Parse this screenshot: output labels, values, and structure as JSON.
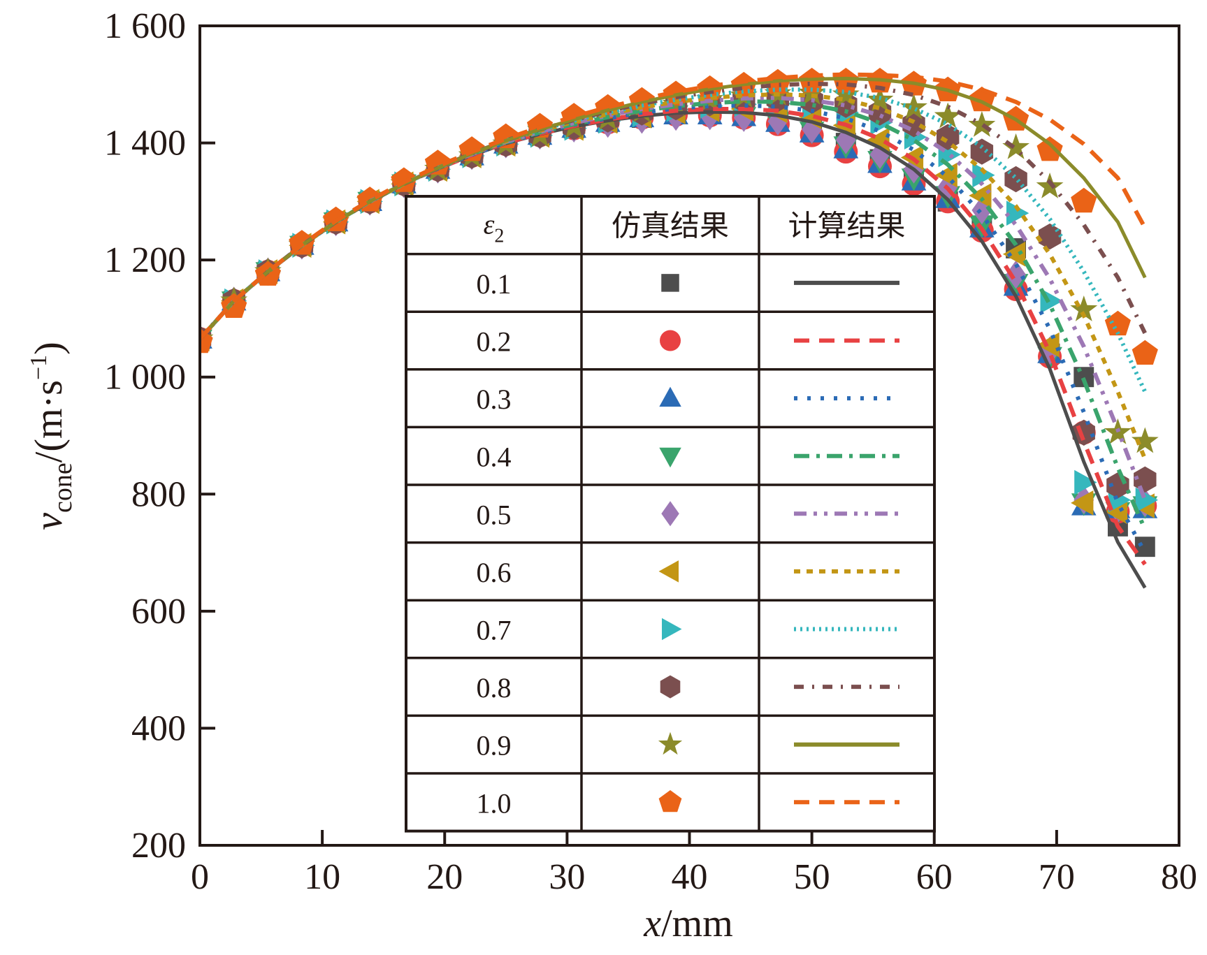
{
  "chart_data": {
    "type": "line",
    "title": "",
    "xlabel": "x/mm",
    "xlabel_italic_part": "x",
    "xlabel_unit": "/mm",
    "ylabel_var": "v",
    "ylabel_sub": "cone",
    "ylabel_unit": "/(m·s",
    "ylabel_sup": "−1",
    "ylabel_close": ")",
    "xlim": [
      0,
      80
    ],
    "ylim": [
      200,
      1600
    ],
    "xticks": [
      0,
      10,
      20,
      30,
      40,
      50,
      60,
      70,
      80
    ],
    "xtick_labels": [
      "0",
      "10",
      "20",
      "30",
      "40",
      "50",
      "60",
      "70",
      "80"
    ],
    "yticks": [
      200,
      400,
      600,
      800,
      1000,
      1200,
      1400,
      1600
    ],
    "ytick_labels": [
      "200",
      "400",
      "600",
      "800",
      "1 000",
      "1 200",
      "1 400",
      "1 600"
    ],
    "grid": false,
    "legend": {
      "placement": "center-inside",
      "header": [
        "ε₂",
        "仿真结果",
        "计算结果"
      ],
      "header_symbol": "ε",
      "header_sub": "2"
    },
    "x": [
      0,
      2.78,
      5.56,
      8.33,
      11.11,
      13.89,
      16.67,
      19.44,
      22.22,
      25.0,
      27.78,
      30.56,
      33.33,
      36.11,
      38.89,
      41.67,
      44.44,
      47.22,
      50.0,
      52.78,
      55.56,
      58.33,
      61.11,
      63.89,
      66.67,
      69.44,
      72.22,
      75.0,
      77.22
    ],
    "series": [
      {
        "name": "0.1",
        "color": "#4d4d4d",
        "marker": "square",
        "line": "solid",
        "sim": [
          1065,
          1130,
          1180,
          1225,
          1265,
          1300,
          1330,
          1355,
          1378,
          1398,
          1413,
          1425,
          1435,
          1443,
          1450,
          1450,
          1448,
          1440,
          1425,
          1400,
          1372,
          1340,
          1300,
          1255,
          1220,
          1040,
          1000,
          745,
          710
        ],
        "calc": [
          1065,
          1130,
          1180,
          1225,
          1265,
          1300,
          1330,
          1356,
          1379,
          1399,
          1415,
          1428,
          1438,
          1446,
          1451,
          1453,
          1452,
          1447,
          1436,
          1418,
          1392,
          1355,
          1303,
          1232,
          1138,
          1014,
          855,
          718,
          640
        ]
      },
      {
        "name": "0.2",
        "color": "#e84142",
        "marker": "circle",
        "line": "dash",
        "sim": [
          1065,
          1130,
          1180,
          1225,
          1265,
          1300,
          1330,
          1355,
          1378,
          1398,
          1413,
          1425,
          1435,
          1443,
          1448,
          1447,
          1443,
          1432,
          1413,
          1385,
          1360,
          1330,
          1300,
          1250,
          1150,
          1035,
          905,
          770,
          780
        ],
        "calc": [
          1065,
          1130,
          1180,
          1225,
          1265,
          1300,
          1330,
          1356,
          1379,
          1400,
          1416,
          1429,
          1440,
          1449,
          1455,
          1458,
          1458,
          1455,
          1446,
          1431,
          1407,
          1372,
          1322,
          1253,
          1162,
          1042,
          890,
          745,
          680
        ]
      },
      {
        "name": "0.3",
        "color": "#2b6bb5",
        "marker": "triangle-up",
        "line": "dot",
        "sim": [
          1065,
          1130,
          1180,
          1225,
          1265,
          1300,
          1330,
          1355,
          1378,
          1398,
          1413,
          1425,
          1435,
          1443,
          1448,
          1448,
          1445,
          1435,
          1417,
          1390,
          1365,
          1335,
          1305,
          1255,
          1155,
          1040,
          780,
          775,
          775
        ],
        "calc": [
          1065,
          1130,
          1180,
          1225,
          1265,
          1300,
          1330,
          1356,
          1380,
          1400,
          1417,
          1431,
          1442,
          1452,
          1459,
          1463,
          1464,
          1462,
          1455,
          1442,
          1420,
          1388,
          1342,
          1278,
          1193,
          1082,
          940,
          785,
          700
        ]
      },
      {
        "name": "0.4",
        "color": "#3aa46c",
        "marker": "triangle-down",
        "line": "dashdot",
        "sim": [
          1065,
          1130,
          1180,
          1225,
          1265,
          1300,
          1330,
          1355,
          1378,
          1398,
          1413,
          1425,
          1435,
          1443,
          1448,
          1448,
          1445,
          1437,
          1420,
          1395,
          1370,
          1340,
          1310,
          1260,
          1160,
          1035,
          785,
          770,
          780
        ],
        "calc": [
          1065,
          1130,
          1180,
          1225,
          1265,
          1300,
          1330,
          1357,
          1381,
          1401,
          1418,
          1432,
          1444,
          1455,
          1463,
          1468,
          1471,
          1470,
          1465,
          1454,
          1434,
          1405,
          1363,
          1304,
          1226,
          1124,
          995,
          845,
          740
        ]
      },
      {
        "name": "0.5",
        "color": "#9d78b5",
        "marker": "diamond",
        "line": "dashdotdot",
        "sim": [
          1065,
          1130,
          1180,
          1225,
          1265,
          1300,
          1330,
          1355,
          1378,
          1398,
          1413,
          1425,
          1433,
          1440,
          1445,
          1446,
          1443,
          1437,
          1423,
          1405,
          1380,
          1355,
          1325,
          1285,
          1175,
          1045,
          790,
          775,
          785
        ],
        "calc": [
          1065,
          1130,
          1180,
          1225,
          1265,
          1300,
          1330,
          1357,
          1381,
          1402,
          1419,
          1434,
          1447,
          1458,
          1466,
          1472,
          1476,
          1477,
          1473,
          1464,
          1447,
          1421,
          1383,
          1330,
          1260,
          1168,
          1052,
          910,
          790
        ]
      },
      {
        "name": "0.6",
        "color": "#c39615",
        "marker": "triangle-left",
        "line": "shortdash",
        "sim": [
          1065,
          1130,
          1180,
          1225,
          1265,
          1300,
          1330,
          1355,
          1378,
          1398,
          1413,
          1425,
          1437,
          1446,
          1453,
          1457,
          1458,
          1455,
          1445,
          1430,
          1405,
          1375,
          1345,
          1310,
          1210,
          1055,
          785,
          770,
          780
        ],
        "calc": [
          1065,
          1130,
          1180,
          1225,
          1265,
          1300,
          1330,
          1357,
          1382,
          1403,
          1421,
          1436,
          1449,
          1461,
          1470,
          1477,
          1481,
          1483,
          1481,
          1474,
          1459,
          1436,
          1402,
          1355,
          1292,
          1210,
          1105,
          975,
          860
        ]
      },
      {
        "name": "0.7",
        "color": "#35b7bd",
        "marker": "triangle-right",
        "line": "fine-dot",
        "sim": [
          1065,
          1130,
          1180,
          1225,
          1265,
          1300,
          1330,
          1355,
          1378,
          1398,
          1413,
          1425,
          1437,
          1448,
          1457,
          1463,
          1466,
          1467,
          1463,
          1452,
          1435,
          1410,
          1380,
          1345,
          1280,
          1130,
          820,
          790,
          790
        ],
        "calc": [
          1065,
          1130,
          1180,
          1225,
          1265,
          1300,
          1330,
          1357,
          1382,
          1404,
          1422,
          1438,
          1452,
          1464,
          1474,
          1482,
          1488,
          1491,
          1491,
          1487,
          1477,
          1459,
          1432,
          1393,
          1340,
          1270,
          1180,
          1075,
          975
        ]
      },
      {
        "name": "0.8",
        "color": "#7b4f4f",
        "marker": "hexagon",
        "line": "dashdot-sparse",
        "sim": [
          1065,
          1130,
          1180,
          1225,
          1265,
          1300,
          1330,
          1355,
          1378,
          1398,
          1413,
          1427,
          1440,
          1452,
          1461,
          1468,
          1473,
          1475,
          1472,
          1465,
          1452,
          1432,
          1410,
          1385,
          1338,
          1240,
          905,
          815,
          825
        ],
        "calc": [
          1065,
          1130,
          1180,
          1225,
          1265,
          1300,
          1330,
          1357,
          1382,
          1404,
          1423,
          1439,
          1454,
          1467,
          1478,
          1487,
          1494,
          1499,
          1501,
          1500,
          1494,
          1482,
          1462,
          1432,
          1390,
          1333,
          1260,
          1170,
          1075
        ]
      },
      {
        "name": "0.9",
        "color": "#8b8b2a",
        "marker": "star",
        "line": "solid",
        "sim": [
          1065,
          1130,
          1180,
          1225,
          1265,
          1300,
          1330,
          1355,
          1378,
          1398,
          1413,
          1428,
          1442,
          1455,
          1466,
          1474,
          1480,
          1484,
          1485,
          1482,
          1473,
          1460,
          1445,
          1430,
          1392,
          1325,
          1115,
          905,
          890
        ],
        "calc": [
          1065,
          1130,
          1180,
          1225,
          1265,
          1300,
          1330,
          1357,
          1382,
          1404,
          1423,
          1440,
          1456,
          1470,
          1482,
          1492,
          1500,
          1506,
          1509,
          1510,
          1508,
          1502,
          1490,
          1470,
          1440,
          1398,
          1340,
          1265,
          1170
        ]
      },
      {
        "name": "1.0",
        "color": "#ea6317",
        "marker": "pentagon",
        "line": "dash",
        "sim": [
          1060,
          1120,
          1175,
          1228,
          1268,
          1302,
          1335,
          1365,
          1388,
          1410,
          1428,
          1445,
          1460,
          1472,
          1483,
          1492,
          1498,
          1503,
          1505,
          1505,
          1505,
          1500,
          1490,
          1473,
          1440,
          1388,
          1300,
          1090,
          1040
        ],
        "calc": [
          1065,
          1130,
          1180,
          1226,
          1267,
          1302,
          1333,
          1360,
          1385,
          1407,
          1427,
          1445,
          1461,
          1475,
          1487,
          1497,
          1505,
          1511,
          1515,
          1517,
          1516,
          1513,
          1505,
          1491,
          1470,
          1440,
          1398,
          1340,
          1255
        ]
      }
    ]
  }
}
